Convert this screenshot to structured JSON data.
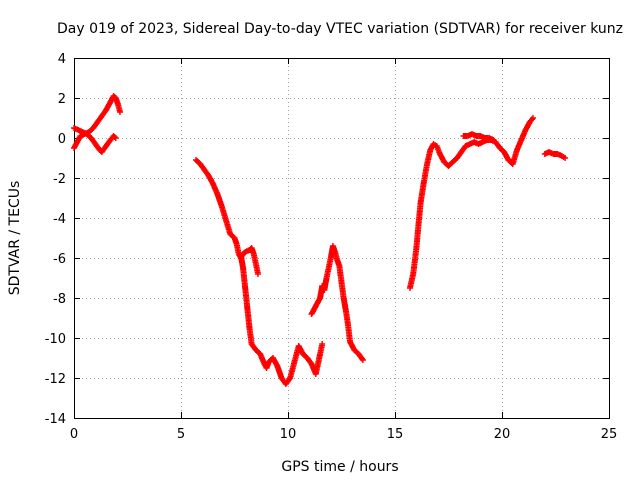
{
  "chart_data": {
    "type": "scatter",
    "title": "Day 019 of 2023, Sidereal Day-to-day VTEC variation (SDTVAR) for receiver kunz",
    "xlabel": "GPS time / hours",
    "ylabel": "SDTVAR / TECUs",
    "xlim": [
      0,
      25
    ],
    "ylim": [
      -14,
      4
    ],
    "xticks": [
      0,
      5,
      10,
      15,
      20,
      25
    ],
    "yticks": [
      -14,
      -12,
      -10,
      -8,
      -6,
      -4,
      -2,
      0,
      2,
      4
    ],
    "grid": true,
    "marker": "plus",
    "color": "#ff0000",
    "segments": [
      [
        [
          0.0,
          -0.5
        ],
        [
          0.15,
          -0.2
        ],
        [
          0.3,
          0.1
        ],
        [
          0.5,
          0.2
        ],
        [
          0.7,
          0.3
        ],
        [
          0.9,
          0.5
        ],
        [
          1.1,
          0.8
        ],
        [
          1.3,
          1.1
        ],
        [
          1.5,
          1.4
        ],
        [
          1.7,
          1.8
        ],
        [
          1.85,
          2.1
        ],
        [
          1.95,
          2.0
        ],
        [
          2.05,
          1.7
        ],
        [
          2.15,
          1.3
        ]
      ],
      [
        [
          0.0,
          0.5
        ],
        [
          0.2,
          0.4
        ],
        [
          0.4,
          0.3
        ],
        [
          0.6,
          0.2
        ],
        [
          0.8,
          0.0
        ],
        [
          1.0,
          -0.3
        ],
        [
          1.2,
          -0.6
        ],
        [
          1.3,
          -0.7
        ],
        [
          1.5,
          -0.4
        ],
        [
          1.7,
          -0.1
        ],
        [
          1.85,
          0.1
        ],
        [
          1.95,
          0.0
        ]
      ],
      [
        [
          5.7,
          -1.1
        ],
        [
          5.9,
          -1.3
        ],
        [
          6.1,
          -1.6
        ],
        [
          6.3,
          -1.9
        ],
        [
          6.5,
          -2.3
        ],
        [
          6.7,
          -2.8
        ],
        [
          6.9,
          -3.4
        ],
        [
          7.1,
          -4.1
        ],
        [
          7.3,
          -4.8
        ],
        [
          7.5,
          -5.0
        ],
        [
          7.6,
          -5.3
        ],
        [
          7.7,
          -5.8
        ],
        [
          7.8,
          -6.0
        ],
        [
          7.9,
          -5.8
        ],
        [
          8.0,
          -5.7
        ],
        [
          8.2,
          -5.6
        ],
        [
          8.3,
          -5.5
        ],
        [
          8.4,
          -5.8
        ],
        [
          8.5,
          -6.3
        ],
        [
          8.6,
          -6.8
        ]
      ],
      [
        [
          7.8,
          -5.9
        ],
        [
          7.9,
          -6.5
        ],
        [
          8.0,
          -7.5
        ],
        [
          8.1,
          -8.5
        ],
        [
          8.2,
          -9.5
        ],
        [
          8.3,
          -10.3
        ],
        [
          8.5,
          -10.6
        ],
        [
          8.7,
          -10.8
        ],
        [
          8.9,
          -11.3
        ],
        [
          9.0,
          -11.5
        ],
        [
          9.1,
          -11.2
        ],
        [
          9.3,
          -11.0
        ],
        [
          9.5,
          -11.4
        ],
        [
          9.7,
          -12.0
        ],
        [
          9.9,
          -12.3
        ],
        [
          10.1,
          -12.0
        ],
        [
          10.3,
          -11.2
        ],
        [
          10.5,
          -10.4
        ],
        [
          10.7,
          -10.8
        ],
        [
          10.9,
          -11.0
        ],
        [
          11.1,
          -11.3
        ],
        [
          11.3,
          -11.8
        ],
        [
          11.5,
          -10.8
        ],
        [
          11.6,
          -10.3
        ]
      ],
      [
        [
          11.1,
          -8.8
        ],
        [
          11.3,
          -8.4
        ],
        [
          11.5,
          -8.0
        ],
        [
          11.6,
          -7.4
        ],
        [
          11.7,
          -7.6
        ],
        [
          11.8,
          -7.0
        ],
        [
          11.9,
          -6.5
        ],
        [
          12.0,
          -6.0
        ],
        [
          12.1,
          -5.4
        ],
        [
          12.2,
          -5.7
        ],
        [
          12.3,
          -6.1
        ],
        [
          12.4,
          -6.4
        ],
        [
          12.5,
          -7.2
        ],
        [
          12.6,
          -8.0
        ],
        [
          12.7,
          -8.6
        ],
        [
          12.8,
          -9.3
        ],
        [
          12.9,
          -10.2
        ],
        [
          13.1,
          -10.6
        ],
        [
          13.3,
          -10.8
        ],
        [
          13.5,
          -11.1
        ]
      ],
      [
        [
          15.7,
          -7.5
        ],
        [
          15.85,
          -6.8
        ],
        [
          16.0,
          -5.5
        ],
        [
          16.1,
          -4.3
        ],
        [
          16.2,
          -3.2
        ],
        [
          16.35,
          -2.2
        ],
        [
          16.5,
          -1.3
        ],
        [
          16.65,
          -0.6
        ],
        [
          16.8,
          -0.3
        ],
        [
          16.95,
          -0.4
        ],
        [
          17.1,
          -0.8
        ],
        [
          17.3,
          -1.2
        ],
        [
          17.5,
          -1.4
        ],
        [
          17.7,
          -1.2
        ],
        [
          17.9,
          -1.0
        ],
        [
          18.1,
          -0.7
        ],
        [
          18.3,
          -0.4
        ],
        [
          18.5,
          -0.3
        ],
        [
          18.7,
          -0.2
        ],
        [
          18.9,
          -0.3
        ],
        [
          19.1,
          -0.2
        ],
        [
          19.3,
          -0.1
        ],
        [
          19.5,
          -0.1
        ],
        [
          19.7,
          -0.2
        ],
        [
          19.9,
          -0.5
        ],
        [
          20.1,
          -0.7
        ],
        [
          20.3,
          -1.1
        ],
        [
          20.5,
          -1.3
        ],
        [
          20.7,
          -0.6
        ],
        [
          20.9,
          -0.1
        ],
        [
          21.1,
          0.4
        ],
        [
          21.3,
          0.8
        ],
        [
          21.45,
          1.0
        ]
      ],
      [
        [
          18.2,
          0.1
        ],
        [
          18.4,
          0.1
        ],
        [
          18.6,
          0.2
        ],
        [
          18.8,
          0.1
        ],
        [
          19.0,
          0.1
        ],
        [
          19.2,
          0.0
        ],
        [
          19.4,
          0.0
        ],
        [
          19.6,
          -0.1
        ]
      ],
      [
        [
          22.0,
          -0.8
        ],
        [
          22.2,
          -0.7
        ],
        [
          22.4,
          -0.8
        ],
        [
          22.6,
          -0.8
        ],
        [
          22.8,
          -0.9
        ],
        [
          22.95,
          -1.0
        ]
      ]
    ]
  }
}
